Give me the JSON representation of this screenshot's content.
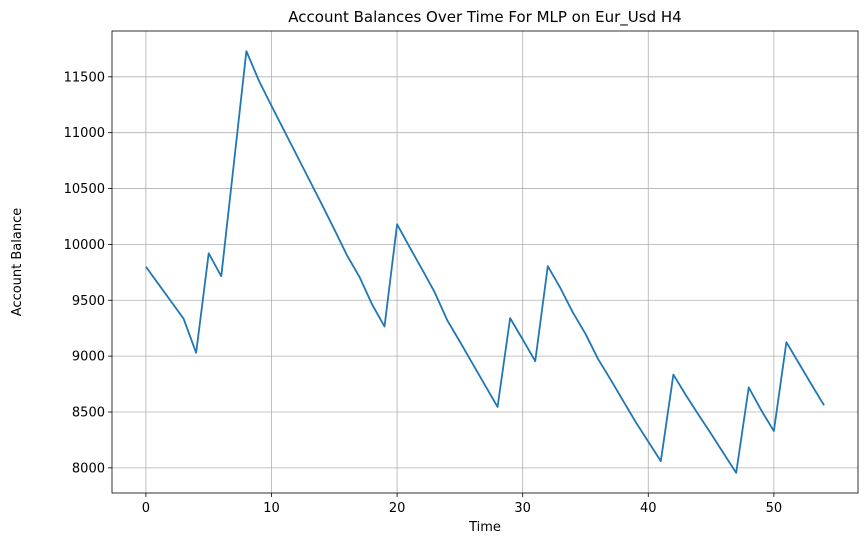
{
  "chart_data": {
    "type": "line",
    "title": "Account Balances Over Time For MLP on Eur_Usd H4",
    "xlabel": "Time",
    "ylabel": "Account Balance",
    "xlim": [
      -2.7,
      56.7
    ],
    "ylim": [
      7775,
      11910
    ],
    "xticks": [
      0,
      10,
      20,
      30,
      40,
      50
    ],
    "yticks": [
      8000,
      8500,
      9000,
      9500,
      10000,
      10500,
      11000,
      11500
    ],
    "grid": true,
    "line_color": "#1f77b4",
    "series": [
      {
        "x": [
          0,
          1,
          2,
          3,
          4,
          5,
          6,
          7,
          8,
          9,
          10,
          11,
          12,
          13,
          14,
          15,
          16,
          17,
          18,
          19,
          20,
          21,
          22,
          23,
          24,
          25,
          26,
          27,
          28,
          29,
          30,
          31,
          32,
          33,
          34,
          35,
          36,
          37,
          38,
          39,
          40,
          41,
          42,
          43,
          44,
          45,
          46,
          47,
          48,
          49,
          50,
          51,
          52,
          53,
          54
        ],
        "values": [
          9800,
          9645,
          9490,
          9335,
          9030,
          9920,
          9715,
          10720,
          11730,
          11465,
          11240,
          11020,
          10800,
          10580,
          10360,
          10135,
          9905,
          9710,
          9465,
          9265,
          10180,
          9975,
          9775,
          9570,
          9320,
          9130,
          8935,
          8740,
          8545,
          9340,
          9150,
          8955,
          9805,
          9610,
          9390,
          9200,
          8975,
          8790,
          8600,
          8410,
          8235,
          8060,
          8835,
          8650,
          8475,
          8305,
          8130,
          7955,
          8720,
          8515,
          8330,
          9125,
          8935,
          8745,
          8560
        ]
      }
    ]
  }
}
